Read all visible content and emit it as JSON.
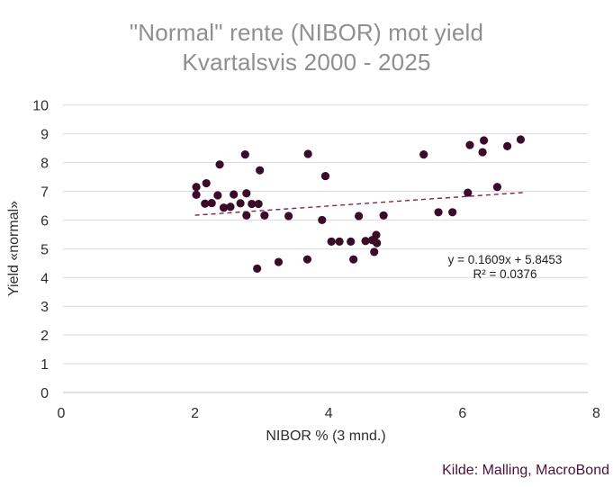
{
  "title": {
    "line1": "\"Normal\" rente (NIBOR) mot yield",
    "line2": "Kvartalsvis 2000 - 2025"
  },
  "footer": {
    "source": "Kilde: Malling, MacroBond"
  },
  "chart_data": {
    "type": "scatter",
    "title": "\"Normal\" rente (NIBOR) mot yield",
    "subtitle": "Kvartalsvis 2000 - 2025",
    "xlabel": "NIBOR % (3 mnd.)",
    "ylabel": "Yield «normal»",
    "xlim": [
      0,
      8
    ],
    "ylim": [
      0,
      10
    ],
    "xticks": [
      0,
      2,
      4,
      6,
      8
    ],
    "yticks": [
      0,
      1,
      2,
      3,
      4,
      5,
      6,
      7,
      8,
      9,
      10
    ],
    "grid": "horizontal-only",
    "legend": "none",
    "points": [
      [
        2.02,
        7.15
      ],
      [
        2.17,
        7.28
      ],
      [
        2.02,
        6.88
      ],
      [
        2.34,
        6.86
      ],
      [
        2.58,
        6.89
      ],
      [
        2.15,
        6.57
      ],
      [
        2.25,
        6.59
      ],
      [
        2.43,
        6.43
      ],
      [
        2.53,
        6.46
      ],
      [
        2.68,
        6.58
      ],
      [
        2.37,
        7.93
      ],
      [
        2.75,
        8.28
      ],
      [
        2.97,
        7.73
      ],
      [
        3.69,
        8.3
      ],
      [
        3.95,
        7.53
      ],
      [
        2.77,
        6.93
      ],
      [
        2.85,
        6.56
      ],
      [
        2.95,
        6.56
      ],
      [
        2.77,
        6.16
      ],
      [
        3.04,
        6.16
      ],
      [
        3.4,
        6.14
      ],
      [
        3.9,
        6.0
      ],
      [
        2.93,
        4.31
      ],
      [
        3.25,
        4.54
      ],
      [
        3.68,
        4.63
      ],
      [
        4.37,
        4.63
      ],
      [
        4.04,
        5.25
      ],
      [
        4.16,
        5.25
      ],
      [
        4.33,
        5.25
      ],
      [
        4.55,
        5.27
      ],
      [
        4.65,
        5.3
      ],
      [
        4.71,
        5.48
      ],
      [
        4.72,
        5.2
      ],
      [
        4.68,
        4.89
      ],
      [
        4.45,
        6.14
      ],
      [
        4.82,
        6.16
      ],
      [
        5.42,
        8.28
      ],
      [
        5.64,
        6.27
      ],
      [
        5.85,
        6.27
      ],
      [
        6.08,
        6.95
      ],
      [
        6.52,
        7.15
      ],
      [
        6.11,
        8.61
      ],
      [
        6.32,
        8.77
      ],
      [
        6.3,
        8.36
      ],
      [
        6.67,
        8.57
      ],
      [
        6.87,
        8.8
      ]
    ],
    "trendline": {
      "slope": 0.1609,
      "intercept": 5.8453,
      "x_start": 2.0,
      "x_end": 6.9,
      "style": "dashed",
      "label_line1": "y = 0.1609x + 5.8453",
      "label_line2": "R² = 0.0376"
    },
    "colors": {
      "dot": "#3a0c2a",
      "trend": "#802451",
      "grid": "#dcdcdc",
      "axis_line": "#c2c2c2",
      "axis_text": "#2e2e2e",
      "title_text": "#8d8f92",
      "source_text": "#4a1238"
    }
  }
}
